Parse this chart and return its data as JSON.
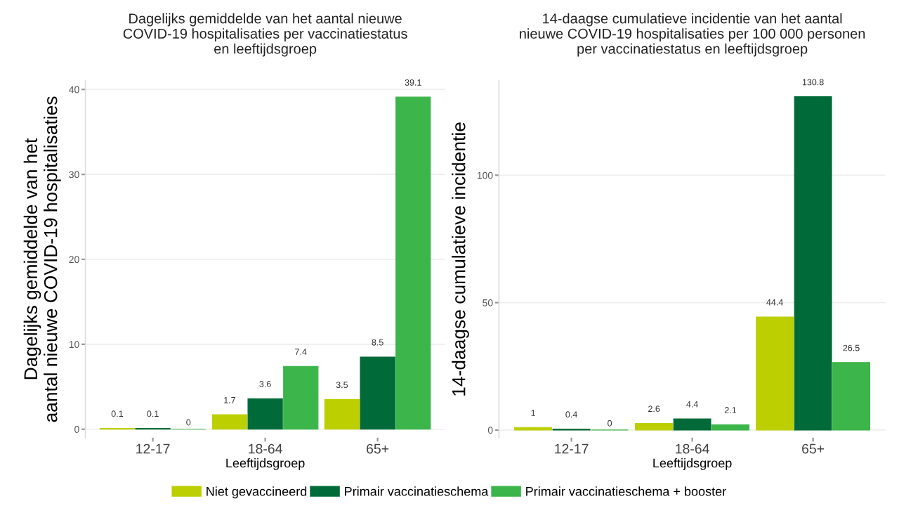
{
  "chart_data": [
    {
      "type": "bar",
      "title": "Dagelijks gemiddelde van het aantal nieuwe\nCOVID-19 hospitalisaties per vaccinatiestatus\nen leeftijdsgroep",
      "xlabel": "Leeftijdsgroep",
      "ylabel": "Dagelijks gemiddelde van het\naantal nieuwe COVID-19 hospitalisaties",
      "categories": [
        "12-17",
        "18-64",
        "65+"
      ],
      "series": [
        {
          "name": "Niet gevaccineerd",
          "color": "#bccf00",
          "values": [
            0.1,
            1.7,
            3.5
          ]
        },
        {
          "name": "Primair vaccinatieschema",
          "color": "#006a38",
          "values": [
            0.1,
            3.6,
            8.5
          ]
        },
        {
          "name": "Primair vaccinatieschema + booster",
          "color": "#3cb54a",
          "values": [
            0,
            7.4,
            39.1
          ]
        }
      ],
      "ylim": [
        -1,
        41
      ],
      "yticks": [
        0,
        10,
        20,
        30,
        40
      ],
      "grid": "y",
      "data_labels": true,
      "legend": "bottom"
    },
    {
      "type": "bar",
      "title": "14-daagse cumulatieve incidentie van het aantal\nnieuwe COVID-19 hospitalisaties per 100 000 personen\nper vaccinatiestatus en leeftijdsgroep",
      "xlabel": "Leeftijdsgroep",
      "ylabel": "14-daagse cumulatieve incidentie",
      "categories": [
        "12-17",
        "18-64",
        "65+"
      ],
      "series": [
        {
          "name": "Niet gevaccineerd",
          "color": "#bccf00",
          "values": [
            1,
            2.6,
            44.4
          ]
        },
        {
          "name": "Primair vaccinatieschema",
          "color": "#006a38",
          "values": [
            0.4,
            4.4,
            130.8
          ]
        },
        {
          "name": "Primair vaccinatieschema + booster",
          "color": "#3cb54a",
          "values": [
            0,
            2.1,
            26.5
          ]
        }
      ],
      "ylim": [
        -3,
        137
      ],
      "yticks": [
        0,
        50,
        100
      ],
      "grid": "y",
      "data_labels": true
    }
  ]
}
